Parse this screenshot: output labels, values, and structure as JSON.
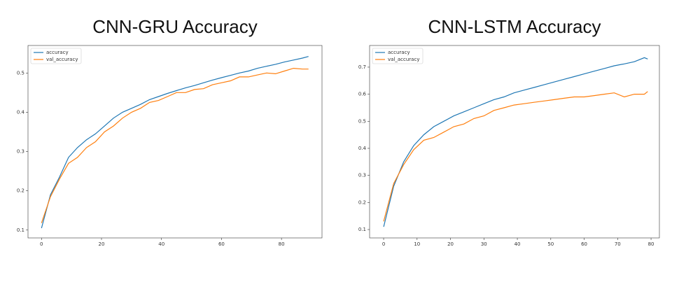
{
  "chart_data": [
    {
      "type": "line",
      "title": "CNN-GRU Accuracy",
      "legend": "upper left",
      "xlim": [
        -4.5,
        93.5
      ],
      "ylim": [
        0.08,
        0.57
      ],
      "xticks": [
        0,
        20,
        40,
        60,
        80
      ],
      "yticks": [
        0.1,
        0.2,
        0.3,
        0.4,
        0.5
      ],
      "x": [
        0,
        3,
        6,
        9,
        12,
        15,
        18,
        21,
        24,
        27,
        30,
        33,
        36,
        39,
        42,
        45,
        48,
        51,
        54,
        57,
        60,
        63,
        66,
        69,
        72,
        75,
        78,
        81,
        84,
        87,
        89
      ],
      "series": [
        {
          "name": "accuracy",
          "color": "#1f77b4",
          "values": [
            0.105,
            0.19,
            0.235,
            0.285,
            0.31,
            0.33,
            0.345,
            0.365,
            0.385,
            0.4,
            0.41,
            0.42,
            0.432,
            0.44,
            0.448,
            0.455,
            0.462,
            0.468,
            0.475,
            0.482,
            0.488,
            0.494,
            0.5,
            0.505,
            0.512,
            0.517,
            0.522,
            0.528,
            0.533,
            0.538,
            0.542
          ]
        },
        {
          "name": "val_accuracy",
          "color": "#ff7f0e",
          "values": [
            0.118,
            0.185,
            0.23,
            0.27,
            0.285,
            0.31,
            0.325,
            0.35,
            0.365,
            0.385,
            0.4,
            0.41,
            0.425,
            0.43,
            0.44,
            0.45,
            0.45,
            0.458,
            0.46,
            0.47,
            0.475,
            0.48,
            0.49,
            0.49,
            0.495,
            0.5,
            0.498,
            0.505,
            0.512,
            0.51,
            0.51
          ]
        }
      ]
    },
    {
      "type": "line",
      "title": "CNN-LSTM Accuracy",
      "legend": "upper left",
      "xlim": [
        -4.2,
        82.5
      ],
      "ylim": [
        0.069,
        0.78
      ],
      "xticks": [
        0,
        10,
        20,
        30,
        40,
        50,
        60,
        70,
        80
      ],
      "yticks": [
        0.1,
        0.2,
        0.3,
        0.4,
        0.5,
        0.6,
        0.7
      ],
      "x": [
        0,
        3,
        6,
        9,
        12,
        15,
        18,
        21,
        24,
        27,
        30,
        33,
        36,
        39,
        42,
        45,
        48,
        51,
        54,
        57,
        60,
        63,
        66,
        69,
        72,
        75,
        78,
        79
      ],
      "series": [
        {
          "name": "accuracy",
          "color": "#1f77b4",
          "values": [
            0.11,
            0.26,
            0.35,
            0.41,
            0.45,
            0.48,
            0.5,
            0.52,
            0.535,
            0.55,
            0.565,
            0.58,
            0.59,
            0.605,
            0.615,
            0.625,
            0.635,
            0.645,
            0.655,
            0.665,
            0.675,
            0.685,
            0.695,
            0.705,
            0.712,
            0.72,
            0.735,
            0.73
          ]
        },
        {
          "name": "val_accuracy",
          "color": "#ff7f0e",
          "values": [
            0.13,
            0.27,
            0.34,
            0.395,
            0.43,
            0.44,
            0.46,
            0.48,
            0.49,
            0.51,
            0.52,
            0.54,
            0.55,
            0.56,
            0.565,
            0.57,
            0.575,
            0.58,
            0.585,
            0.59,
            0.59,
            0.595,
            0.6,
            0.605,
            0.59,
            0.6,
            0.6,
            0.61
          ]
        }
      ]
    }
  ]
}
